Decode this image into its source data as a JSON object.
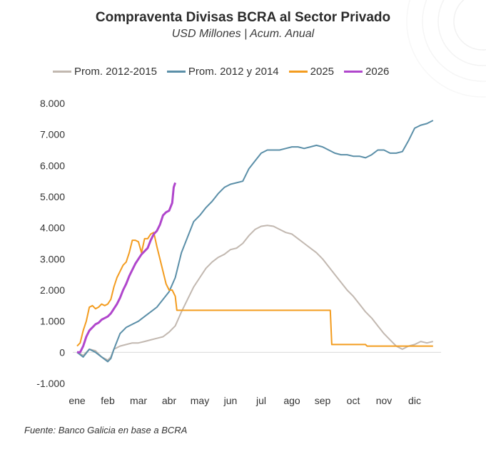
{
  "title": "Compraventa Divisas BCRA al Sector Privado",
  "subtitle": "USD Millones | Acum. Anual",
  "source": "Fuente: Banco Galicia en base a BCRA",
  "chart_data": {
    "type": "line",
    "ylim": [
      -1000,
      8000
    ],
    "yticks": [
      -1000,
      0,
      1000,
      2000,
      3000,
      4000,
      5000,
      6000,
      7000,
      8000
    ],
    "ytick_labels": [
      "-1.000",
      "0",
      "1.000",
      "2.000",
      "3.000",
      "4.000",
      "5.000",
      "6.000",
      "7.000",
      "8.000"
    ],
    "xlim": [
      0,
      12
    ],
    "xticks": [
      "ene",
      "feb",
      "mar",
      "abr",
      "may",
      "jun",
      "jul",
      "ago",
      "sep",
      "oct",
      "nov",
      "dic"
    ],
    "x_unit": "month (0 = start of ene)",
    "grid": false,
    "legend_position": "top",
    "series": [
      {
        "name": "Prom. 2012-2015",
        "color": "#c2b8b0",
        "points": [
          [
            0,
            0
          ],
          [
            0.2,
            -100
          ],
          [
            0.4,
            100
          ],
          [
            0.6,
            50
          ],
          [
            0.8,
            -150
          ],
          [
            1.0,
            -250
          ],
          [
            1.1,
            -150
          ],
          [
            1.2,
            100
          ],
          [
            1.4,
            200
          ],
          [
            1.6,
            250
          ],
          [
            1.8,
            300
          ],
          [
            2.0,
            300
          ],
          [
            2.2,
            350
          ],
          [
            2.4,
            400
          ],
          [
            2.6,
            450
          ],
          [
            2.8,
            500
          ],
          [
            3.0,
            650
          ],
          [
            3.2,
            850
          ],
          [
            3.4,
            1300
          ],
          [
            3.6,
            1700
          ],
          [
            3.8,
            2100
          ],
          [
            4.0,
            2400
          ],
          [
            4.2,
            2700
          ],
          [
            4.4,
            2900
          ],
          [
            4.6,
            3050
          ],
          [
            4.8,
            3150
          ],
          [
            5.0,
            3300
          ],
          [
            5.2,
            3350
          ],
          [
            5.4,
            3500
          ],
          [
            5.6,
            3750
          ],
          [
            5.8,
            3950
          ],
          [
            6.0,
            4050
          ],
          [
            6.2,
            4080
          ],
          [
            6.4,
            4050
          ],
          [
            6.6,
            3950
          ],
          [
            6.8,
            3850
          ],
          [
            7.0,
            3800
          ],
          [
            7.2,
            3650
          ],
          [
            7.4,
            3500
          ],
          [
            7.6,
            3350
          ],
          [
            7.8,
            3200
          ],
          [
            8.0,
            3000
          ],
          [
            8.2,
            2750
          ],
          [
            8.4,
            2500
          ],
          [
            8.6,
            2250
          ],
          [
            8.8,
            2000
          ],
          [
            9.0,
            1800
          ],
          [
            9.2,
            1550
          ],
          [
            9.4,
            1300
          ],
          [
            9.6,
            1100
          ],
          [
            9.8,
            850
          ],
          [
            10.0,
            600
          ],
          [
            10.2,
            400
          ],
          [
            10.4,
            200
          ],
          [
            10.6,
            100
          ],
          [
            10.8,
            200
          ],
          [
            11.0,
            250
          ],
          [
            11.2,
            350
          ],
          [
            11.4,
            300
          ],
          [
            11.6,
            350
          ]
        ]
      },
      {
        "name": "Prom. 2012 y 2014",
        "color": "#5b8fa8",
        "points": [
          [
            0,
            0
          ],
          [
            0.2,
            -150
          ],
          [
            0.4,
            100
          ],
          [
            0.6,
            0
          ],
          [
            0.8,
            -150
          ],
          [
            1.0,
            -300
          ],
          [
            1.1,
            -200
          ],
          [
            1.2,
            100
          ],
          [
            1.4,
            600
          ],
          [
            1.6,
            800
          ],
          [
            1.8,
            900
          ],
          [
            2.0,
            1000
          ],
          [
            2.2,
            1150
          ],
          [
            2.4,
            1300
          ],
          [
            2.6,
            1450
          ],
          [
            2.8,
            1700
          ],
          [
            3.0,
            1950
          ],
          [
            3.2,
            2400
          ],
          [
            3.4,
            3200
          ],
          [
            3.6,
            3700
          ],
          [
            3.8,
            4200
          ],
          [
            4.0,
            4400
          ],
          [
            4.2,
            4650
          ],
          [
            4.4,
            4850
          ],
          [
            4.6,
            5100
          ],
          [
            4.8,
            5300
          ],
          [
            5.0,
            5400
          ],
          [
            5.2,
            5450
          ],
          [
            5.4,
            5500
          ],
          [
            5.6,
            5900
          ],
          [
            5.8,
            6150
          ],
          [
            6.0,
            6400
          ],
          [
            6.2,
            6500
          ],
          [
            6.4,
            6500
          ],
          [
            6.6,
            6500
          ],
          [
            6.8,
            6550
          ],
          [
            7.0,
            6600
          ],
          [
            7.2,
            6600
          ],
          [
            7.4,
            6550
          ],
          [
            7.6,
            6600
          ],
          [
            7.8,
            6650
          ],
          [
            8.0,
            6600
          ],
          [
            8.2,
            6500
          ],
          [
            8.4,
            6400
          ],
          [
            8.6,
            6350
          ],
          [
            8.8,
            6350
          ],
          [
            9.0,
            6300
          ],
          [
            9.2,
            6300
          ],
          [
            9.4,
            6250
          ],
          [
            9.6,
            6350
          ],
          [
            9.8,
            6500
          ],
          [
            10.0,
            6500
          ],
          [
            10.2,
            6400
          ],
          [
            10.4,
            6400
          ],
          [
            10.6,
            6450
          ],
          [
            10.8,
            6800
          ],
          [
            11.0,
            7200
          ],
          [
            11.2,
            7300
          ],
          [
            11.4,
            7350
          ],
          [
            11.6,
            7450
          ]
        ]
      },
      {
        "name": "2025",
        "color": "#f39c1f",
        "points": [
          [
            0,
            200
          ],
          [
            0.1,
            300
          ],
          [
            0.2,
            700
          ],
          [
            0.3,
            1000
          ],
          [
            0.4,
            1450
          ],
          [
            0.5,
            1500
          ],
          [
            0.6,
            1400
          ],
          [
            0.7,
            1450
          ],
          [
            0.8,
            1550
          ],
          [
            0.9,
            1500
          ],
          [
            1.0,
            1550
          ],
          [
            1.1,
            1700
          ],
          [
            1.2,
            2100
          ],
          [
            1.3,
            2400
          ],
          [
            1.4,
            2600
          ],
          [
            1.5,
            2800
          ],
          [
            1.6,
            2900
          ],
          [
            1.7,
            3200
          ],
          [
            1.8,
            3600
          ],
          [
            1.9,
            3600
          ],
          [
            2.0,
            3550
          ],
          [
            2.1,
            3200
          ],
          [
            2.2,
            3650
          ],
          [
            2.3,
            3650
          ],
          [
            2.4,
            3800
          ],
          [
            2.5,
            3850
          ],
          [
            2.6,
            3400
          ],
          [
            2.7,
            3000
          ],
          [
            2.8,
            2600
          ],
          [
            2.9,
            2200
          ],
          [
            3.0,
            2000
          ],
          [
            3.1,
            2000
          ],
          [
            3.2,
            1800
          ],
          [
            3.25,
            1350
          ],
          [
            4.0,
            1350
          ],
          [
            5.0,
            1350
          ],
          [
            6.0,
            1350
          ],
          [
            7.0,
            1350
          ],
          [
            8.0,
            1350
          ],
          [
            8.25,
            1350
          ],
          [
            8.3,
            250
          ],
          [
            9.0,
            250
          ],
          [
            9.4,
            250
          ],
          [
            9.45,
            200
          ],
          [
            11.6,
            200
          ]
        ]
      },
      {
        "name": "2026",
        "color": "#b046cc",
        "points": [
          [
            0,
            0
          ],
          [
            0.1,
            0
          ],
          [
            0.2,
            200
          ],
          [
            0.3,
            500
          ],
          [
            0.4,
            700
          ],
          [
            0.5,
            800
          ],
          [
            0.6,
            900
          ],
          [
            0.7,
            950
          ],
          [
            0.8,
            1050
          ],
          [
            0.9,
            1100
          ],
          [
            1.0,
            1150
          ],
          [
            1.1,
            1250
          ],
          [
            1.2,
            1400
          ],
          [
            1.3,
            1550
          ],
          [
            1.4,
            1750
          ],
          [
            1.5,
            2000
          ],
          [
            1.6,
            2200
          ],
          [
            1.7,
            2450
          ],
          [
            1.8,
            2650
          ],
          [
            1.9,
            2850
          ],
          [
            2.0,
            3000
          ],
          [
            2.1,
            3150
          ],
          [
            2.2,
            3250
          ],
          [
            2.3,
            3350
          ],
          [
            2.4,
            3600
          ],
          [
            2.5,
            3800
          ],
          [
            2.6,
            3900
          ],
          [
            2.7,
            4100
          ],
          [
            2.8,
            4400
          ],
          [
            2.9,
            4500
          ],
          [
            3.0,
            4550
          ],
          [
            3.1,
            4800
          ],
          [
            3.15,
            5300
          ],
          [
            3.2,
            5450
          ]
        ]
      }
    ]
  }
}
